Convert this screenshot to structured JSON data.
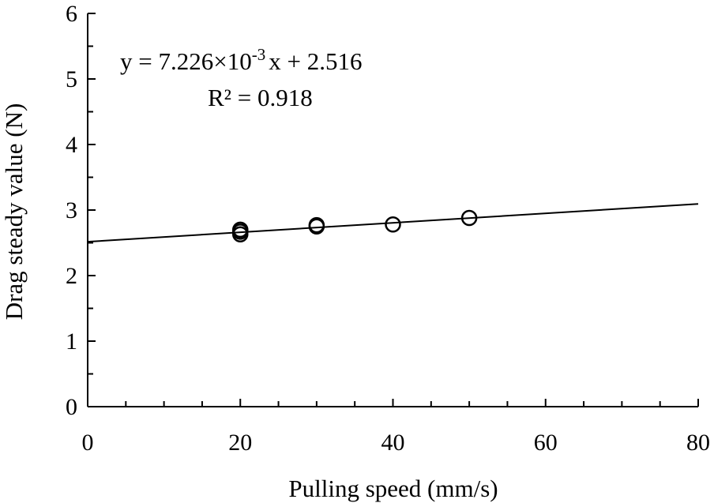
{
  "chart_data": {
    "type": "scatter",
    "xlabel": "Pulling speed (mm/s)",
    "ylabel": "Drag steady value (N)",
    "xlim": [
      0,
      80
    ],
    "ylim": [
      0,
      6
    ],
    "x_ticks": [
      0,
      20,
      40,
      60,
      80
    ],
    "y_ticks": [
      0,
      1,
      2,
      3,
      4,
      5,
      6
    ],
    "x_minor_step": 5,
    "y_minor_step": 0.5,
    "grid": false,
    "series": [
      {
        "points": [
          {
            "x": 20,
            "y": 2.63
          },
          {
            "x": 20,
            "y": 2.67
          },
          {
            "x": 20,
            "y": 2.7
          },
          {
            "x": 30,
            "y": 2.75
          },
          {
            "x": 30,
            "y": 2.77
          },
          {
            "x": 40,
            "y": 2.78
          },
          {
            "x": 50,
            "y": 2.88
          }
        ]
      }
    ],
    "trendline": {
      "slope": 0.007226,
      "intercept": 2.516,
      "x_range": [
        0,
        80
      ]
    },
    "annotations": {
      "equation_prefix": "y = 7.226×10",
      "equation_exp": "-3",
      "equation_suffix": "x + 2.516",
      "r2": "R² = 0.918"
    }
  }
}
